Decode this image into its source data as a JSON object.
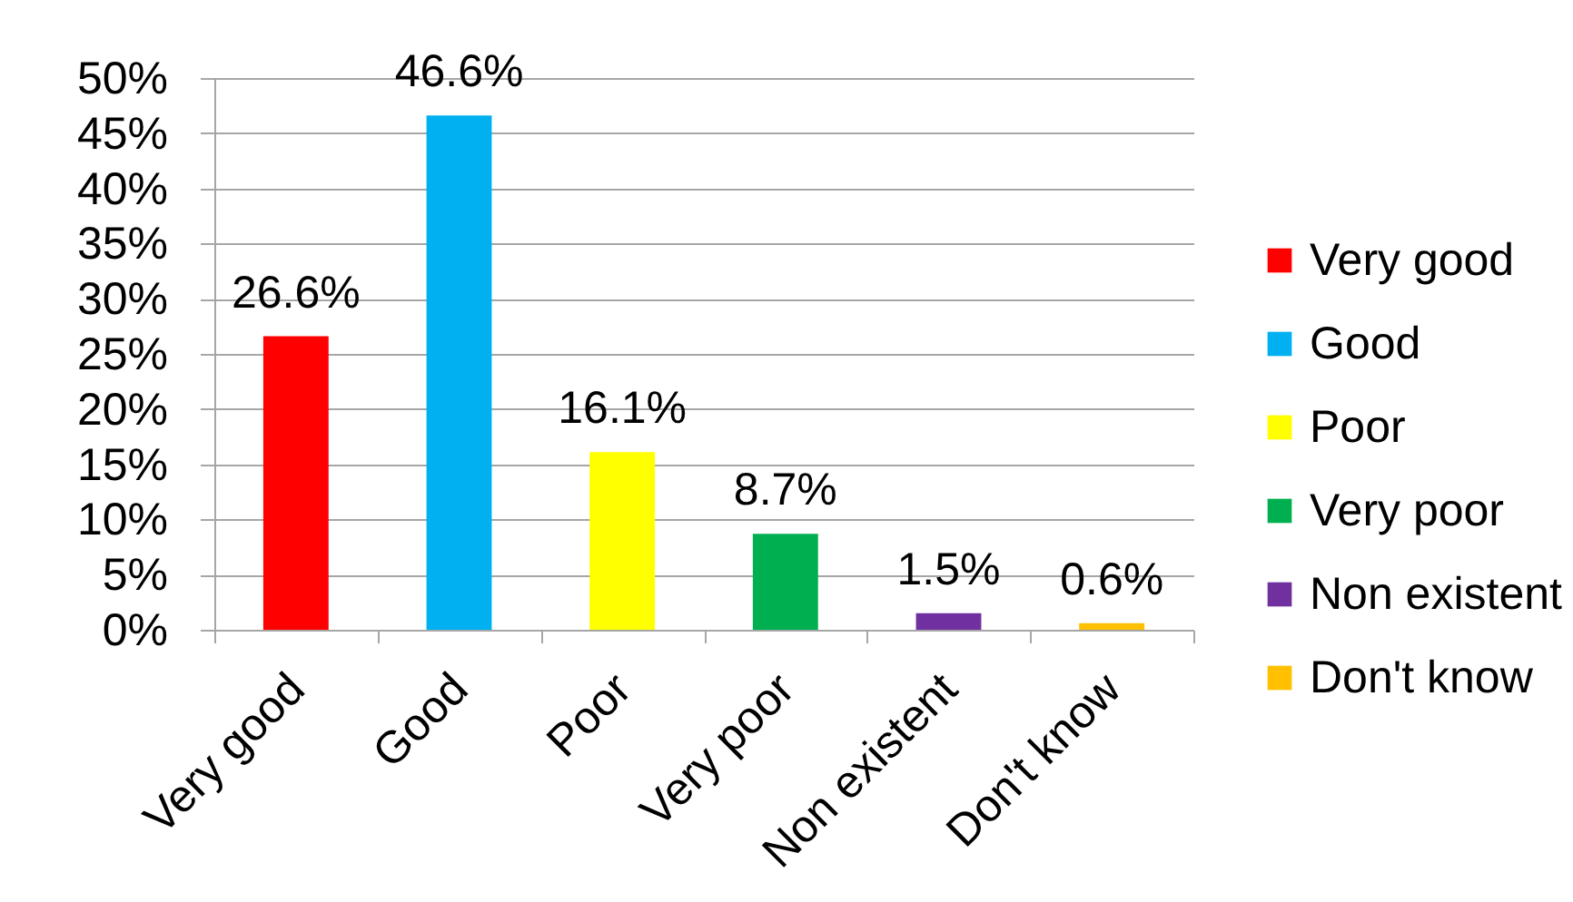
{
  "chart_data": {
    "type": "bar",
    "stacked": true,
    "categories": [
      "Very good",
      "Good",
      "Poor",
      "Very poor",
      "Non existent",
      "Don't know"
    ],
    "series": [
      {
        "name": "Very good",
        "color": "#ff0000",
        "values": [
          26.6,
          null,
          null,
          null,
          null,
          null
        ],
        "value_labels": [
          "26.6%",
          null,
          null,
          null,
          null,
          null
        ]
      },
      {
        "name": "Good",
        "color": "#00b0f0",
        "values": [
          null,
          46.6,
          null,
          null,
          null,
          null
        ],
        "value_labels": [
          null,
          "46.6%",
          null,
          null,
          null,
          null
        ]
      },
      {
        "name": "Poor",
        "color": "#ffff00",
        "values": [
          null,
          null,
          16.1,
          null,
          null,
          null
        ],
        "value_labels": [
          null,
          null,
          "16.1%",
          null,
          null,
          null
        ]
      },
      {
        "name": "Very poor",
        "color": "#00b050",
        "values": [
          null,
          null,
          null,
          8.7,
          null,
          null
        ],
        "value_labels": [
          null,
          null,
          null,
          "8.7%",
          null,
          null
        ]
      },
      {
        "name": "Non existent",
        "color": "#7030a0",
        "values": [
          null,
          null,
          null,
          null,
          1.5,
          null
        ],
        "value_labels": [
          null,
          null,
          null,
          null,
          "1.5%",
          null
        ]
      },
      {
        "name": "Don't know",
        "color": "#ffc000",
        "values": [
          null,
          null,
          null,
          null,
          null,
          0.6
        ],
        "value_labels": [
          null,
          null,
          null,
          null,
          null,
          "0.6%"
        ]
      }
    ],
    "ylim": [
      0,
      50
    ],
    "yticks": [
      {
        "value": 0,
        "label": "0%"
      },
      {
        "value": 5,
        "label": "5%"
      },
      {
        "value": 10,
        "label": "10%"
      },
      {
        "value": 15,
        "label": "15%"
      },
      {
        "value": 20,
        "label": "20%"
      },
      {
        "value": 25,
        "label": "25%"
      },
      {
        "value": 30,
        "label": "30%"
      },
      {
        "value": 35,
        "label": "35%"
      },
      {
        "value": 40,
        "label": "40%"
      },
      {
        "value": 45,
        "label": "45%"
      },
      {
        "value": 50,
        "label": "50%"
      }
    ],
    "grid": "y",
    "legend": "right"
  }
}
